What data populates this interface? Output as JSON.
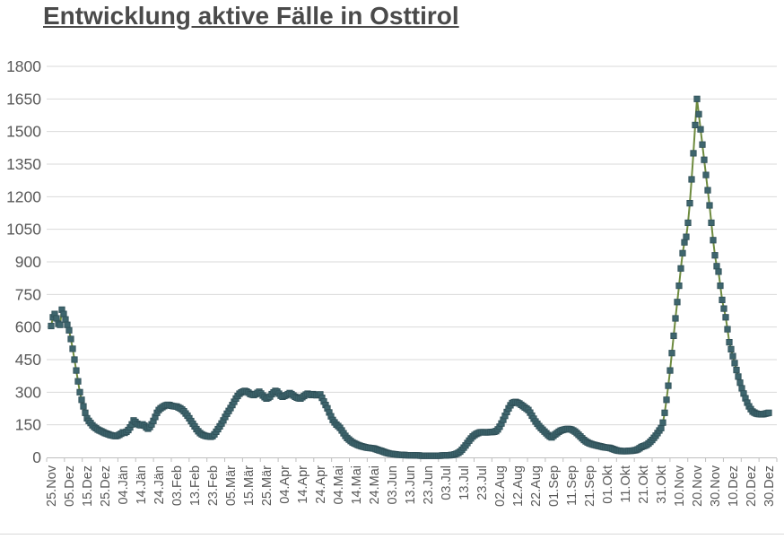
{
  "title": "Entwicklung aktive Fälle in Osttirol",
  "chart_data": {
    "type": "line",
    "title": "Entwicklung aktive Fälle in Osttirol",
    "xlabel": "",
    "ylabel": "",
    "ylim": [
      0,
      1800
    ],
    "y_ticks": [
      0,
      150,
      300,
      450,
      600,
      750,
      900,
      1050,
      1200,
      1350,
      1500,
      1650,
      1800
    ],
    "grid": "horizontal",
    "legend": "none",
    "x_tick_labels": [
      "25.Nov",
      "05.Dez",
      "15.Dez",
      "25.Dez",
      "04.Jän",
      "14.Jän",
      "24.Jän",
      "03.Feb",
      "13.Feb",
      "23.Feb",
      "05.Mär",
      "15.Mär",
      "25.Mär",
      "04.Apr",
      "14.Apr",
      "24.Apr",
      "04.Mai",
      "14.Mai",
      "24.Mai",
      "03.Jun",
      "13.Jun",
      "23.Jun",
      "03.Jul",
      "13.Jul",
      "23.Jul",
      "02.Aug",
      "12.Aug",
      "22.Aug",
      "01.Sep",
      "11.Sep",
      "21.Sep",
      "01.Okt",
      "11.Okt",
      "21.Okt",
      "31.Okt",
      "10.Nov",
      "20.Nov",
      "30.Nov",
      "10.Dez",
      "20.Dez",
      "30.Dez"
    ],
    "x_label_step_days": 10,
    "values_are_daily": true,
    "series": [
      {
        "marker": "square",
        "marker_color": "#3E656D",
        "marker_edge_color": "#2F4F57",
        "line_color": "#6E8B3F",
        "values": [
          605,
          645,
          660,
          640,
          615,
          610,
          680,
          660,
          635,
          610,
          585,
          545,
          500,
          450,
          400,
          350,
          300,
          265,
          235,
          205,
          180,
          168,
          158,
          148,
          140,
          134,
          128,
          124,
          120,
          116,
          112,
          109,
          106,
          103,
          101,
          99,
          98,
          100,
          104,
          109,
          115,
          113,
          118,
          126,
          138,
          152,
          170,
          163,
          155,
          150,
          148,
          152,
          146,
          138,
          132,
          140,
          152,
          168,
          186,
          205,
          218,
          226,
          231,
          236,
          240,
          242,
          241,
          238,
          236,
          235,
          234,
          230,
          226,
          220,
          212,
          202,
          192,
          180,
          167,
          155,
          143,
          130,
          120,
          112,
          106,
          102,
          99,
          97,
          96,
          95,
          98,
          106,
          118,
          130,
          143,
          156,
          170,
          186,
          201,
          214,
          227,
          241,
          256,
          271,
          283,
          293,
          299,
          303,
          306,
          303,
          298,
          292,
          289,
          287,
          291,
          297,
          302,
          294,
          285,
          277,
          271,
          274,
          280,
          291,
          299,
          306,
          303,
          293,
          284,
          279,
          283,
          286,
          291,
          296,
          291,
          285,
          279,
          275,
          272,
          271,
          277,
          283,
          289,
          293,
          290,
          287,
          291,
          289,
          286,
          288,
          290,
          274,
          257,
          241,
          226,
          207,
          189,
          172,
          161,
          151,
          144,
          136,
          124,
          111,
          99,
          89,
          82,
          75,
          69,
          65,
          61,
          57,
          54,
          51,
          49,
          47,
          45,
          44,
          43,
          42,
          41,
          38,
          35,
          32,
          30,
          27,
          24,
          21,
          19,
          17,
          16,
          15,
          14,
          13,
          12,
          12,
          11,
          11,
          10,
          10,
          10,
          10,
          10,
          9,
          9,
          9,
          8,
          8,
          8,
          8,
          8,
          8,
          8,
          8,
          8,
          8,
          8,
          8,
          9,
          9,
          9,
          10,
          10,
          11,
          12,
          14,
          17,
          21,
          27,
          35,
          45,
          55,
          66,
          77,
          87,
          96,
          103,
          108,
          112,
          115,
          116,
          116,
          115,
          115,
          116,
          117,
          117,
          118,
          121,
          129,
          141,
          156,
          173,
          191,
          209,
          226,
          240,
          250,
          254,
          255,
          252,
          248,
          242,
          236,
          230,
          224,
          218,
          206,
          192,
          178,
          165,
          155,
          144,
          135,
          127,
          119,
          111,
          103,
          96,
          92,
          99,
          106,
          112,
          118,
          123,
          126,
          128,
          130,
          131,
          130,
          128,
          124,
          119,
          112,
          104,
          96,
          88,
          80,
          74,
          69,
          65,
          62,
          59,
          57,
          55,
          53,
          51,
          49,
          47,
          46,
          45,
          44,
          42,
          39,
          36,
          33,
          31,
          30,
          29,
          29,
          29,
          29,
          30,
          30,
          31,
          32,
          34,
          37,
          42,
          48,
          51,
          54,
          58,
          64,
          72,
          80,
          90,
          100,
          112,
          124,
          135,
          160,
          205,
          265,
          330,
          400,
          480,
          560,
          640,
          715,
          790,
          870,
          940,
          990,
          1015,
          1080,
          1170,
          1280,
          1400,
          1530,
          1650,
          1580,
          1510,
          1440,
          1370,
          1300,
          1230,
          1160,
          1080,
          1000,
          930,
          880,
          855,
          790,
          725,
          685,
          645,
          590,
          530,
          498,
          466,
          434,
          402,
          372,
          344,
          318,
          294,
          272,
          252,
          235,
          222,
          211,
          206,
          202,
          200,
          199,
          198,
          199,
          201,
          203,
          205
        ]
      }
    ],
    "colors": {
      "grid": "#d9d9d9",
      "axis_line": "#bfbfbf",
      "tick": "#bfbfbf",
      "axis_text": "#595959",
      "title_text": "#4a4a4a",
      "background": "#ffffff"
    }
  }
}
